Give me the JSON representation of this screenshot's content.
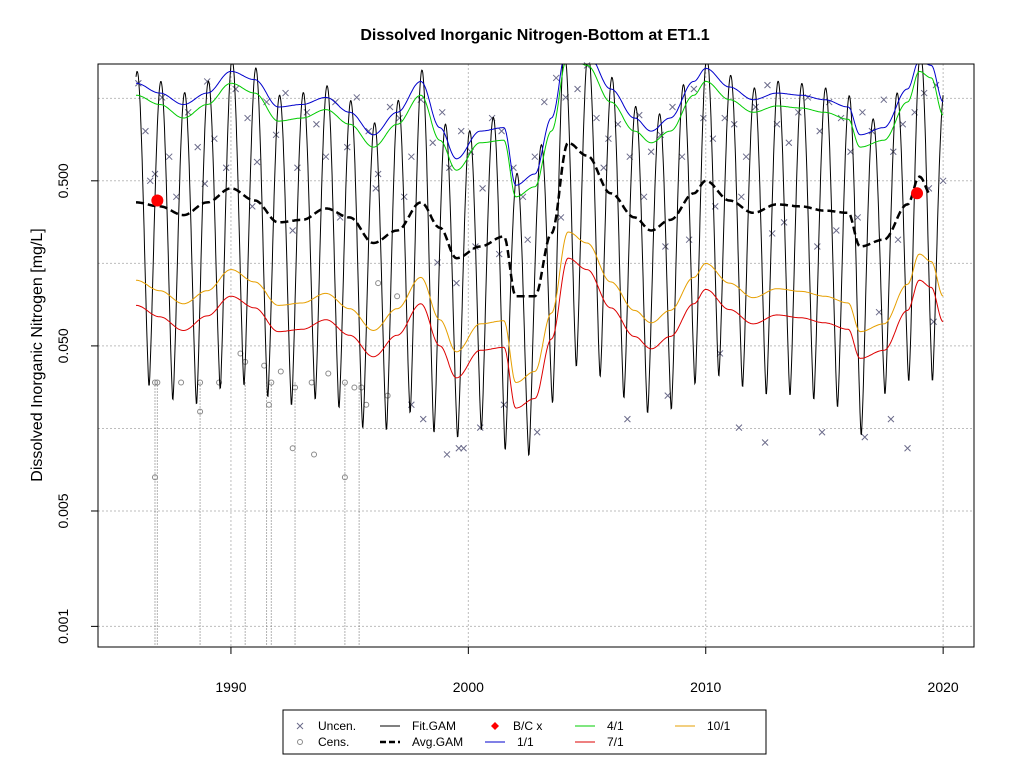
{
  "chart_data": {
    "type": "scatter",
    "title": "Dissolved Inorganic Nitrogen-Bottom at ET1.1",
    "xlabel": "",
    "ylabel": "Dissolved Inorganic Nitrogen [mg/L]",
    "y_scale": "log",
    "xlim": [
      1984.4,
      2021.3
    ],
    "ylim": [
      0.00075,
      2.55
    ],
    "x_ticks": [
      1990,
      2000,
      2010,
      2020
    ],
    "x_tick_labels": [
      "1990",
      "2000",
      "2010",
      "2020"
    ],
    "y_ticks": [
      0.001,
      0.005,
      0.05,
      0.5
    ],
    "y_tick_labels": [
      "0.001",
      "0.005",
      "0.050",
      "0.500"
    ],
    "grid": true,
    "legend_position": "bottom",
    "legend": [
      {
        "key": "uncen",
        "label": "Uncen.",
        "symbol": "x",
        "color": "#6b6b8a"
      },
      {
        "key": "cens",
        "label": "Cens.",
        "symbol": "o",
        "color": "#8a8a8a"
      },
      {
        "key": "fit",
        "label": "Fit.GAM",
        "symbol": "line",
        "color": "#000000"
      },
      {
        "key": "avg",
        "label": "Avg.GAM",
        "symbol": "dashed",
        "color": "#000000"
      },
      {
        "key": "bc",
        "label": "B/C x",
        "symbol": "diamond",
        "color": "#ff0000"
      },
      {
        "key": "s11",
        "label": "1/1",
        "symbol": "line",
        "color": "#0000cc"
      },
      {
        "key": "s41",
        "label": "4/1",
        "symbol": "line",
        "color": "#00cc00"
      },
      {
        "key": "s71",
        "label": "7/1",
        "symbol": "line",
        "color": "#dd0000"
      },
      {
        "key": "s101",
        "label": "10/1",
        "symbol": "line",
        "color": "#e69f00"
      }
    ],
    "series": [
      {
        "name": "Avg.GAM",
        "x": [
          1986.0,
          1987.0,
          1988.0,
          1989.0,
          1990.0,
          1991.0,
          1992.0,
          1993.0,
          1994.0,
          1995.0,
          1996.0,
          1997.0,
          1998.0,
          1998.8,
          1999.5,
          2000.5,
          2001.5,
          2002.0,
          2002.8,
          2003.5,
          2004.2,
          2005.0,
          2006.0,
          2007.0,
          2007.7,
          2008.5,
          2009.5,
          2010.0,
          2011.0,
          2012.0,
          2013.0,
          2014.0,
          2015.0,
          2016.0,
          2016.5,
          2017.5,
          2018.5,
          2019.0,
          2019.5
        ],
        "values": [
          0.37,
          0.35,
          0.31,
          0.37,
          0.45,
          0.38,
          0.28,
          0.29,
          0.34,
          0.3,
          0.21,
          0.25,
          0.37,
          0.26,
          0.17,
          0.2,
          0.23,
          0.1,
          0.1,
          0.24,
          0.85,
          0.71,
          0.42,
          0.3,
          0.25,
          0.29,
          0.42,
          0.5,
          0.38,
          0.32,
          0.36,
          0.35,
          0.33,
          0.32,
          0.2,
          0.22,
          0.36,
          0.53,
          0.41
        ]
      },
      {
        "name": "1/1",
        "x": [
          1986.0,
          1987.0,
          1988.0,
          1989.0,
          1990.0,
          1991.0,
          1992.0,
          1993.0,
          1994.0,
          1995.0,
          1996.0,
          1997.0,
          1998.0,
          1998.8,
          1999.5,
          2000.5,
          2001.5,
          2002.0,
          2002.8,
          2003.5,
          2004.2,
          2005.0,
          2006.0,
          2007.0,
          2007.7,
          2008.5,
          2009.5,
          2010.0,
          2011.0,
          2012.0,
          2013.0,
          2014.0,
          2015.0,
          2016.0,
          2016.5,
          2017.5,
          2018.5,
          2019.0,
          2019.5,
          2020.0
        ],
        "values": [
          1.95,
          1.7,
          1.45,
          1.7,
          2.3,
          2.05,
          1.4,
          1.45,
          1.6,
          1.3,
          0.95,
          1.3,
          2.0,
          1.05,
          0.68,
          1.0,
          1.05,
          0.47,
          0.55,
          1.2,
          3.5,
          3.0,
          1.8,
          1.2,
          1.0,
          1.2,
          2.0,
          2.4,
          1.85,
          1.55,
          1.7,
          1.65,
          1.55,
          1.4,
          0.95,
          1.05,
          1.8,
          2.7,
          2.5,
          1.5
        ]
      },
      {
        "name": "4/1",
        "x": [
          1986.0,
          1987.0,
          1988.0,
          1989.0,
          1990.0,
          1991.0,
          1992.0,
          1993.0,
          1994.0,
          1995.0,
          1996.0,
          1997.0,
          1998.0,
          1998.8,
          1999.5,
          2000.5,
          2001.5,
          2002.0,
          2002.8,
          2003.5,
          2004.2,
          2005.0,
          2006.0,
          2007.0,
          2007.7,
          2008.5,
          2009.5,
          2010.0,
          2011.0,
          2012.0,
          2013.0,
          2014.0,
          2015.0,
          2016.0,
          2016.5,
          2017.5,
          2018.5,
          2019.0,
          2019.5,
          2020.0
        ],
        "values": [
          1.65,
          1.45,
          1.2,
          1.45,
          1.95,
          1.7,
          1.15,
          1.2,
          1.35,
          1.1,
          0.8,
          1.1,
          1.65,
          0.88,
          0.58,
          0.85,
          0.88,
          0.4,
          0.46,
          1.0,
          2.95,
          2.5,
          1.5,
          1.0,
          0.85,
          1.0,
          1.65,
          2.0,
          1.55,
          1.3,
          1.42,
          1.38,
          1.3,
          1.18,
          0.8,
          0.88,
          1.5,
          2.3,
          2.1,
          1.25
        ]
      },
      {
        "name": "7/1",
        "x": [
          1986.0,
          1987.0,
          1988.0,
          1989.0,
          1990.0,
          1991.0,
          1992.0,
          1993.0,
          1994.0,
          1995.0,
          1996.0,
          1997.0,
          1998.0,
          1998.8,
          1999.5,
          2000.5,
          2001.5,
          2002.0,
          2002.8,
          2003.5,
          2004.2,
          2005.0,
          2006.0,
          2007.0,
          2007.7,
          2008.5,
          2009.5,
          2010.0,
          2011.0,
          2012.0,
          2013.0,
          2014.0,
          2015.0,
          2016.0,
          2016.5,
          2017.5,
          2018.5,
          2019.0,
          2019.5,
          2020.0
        ],
        "values": [
          0.088,
          0.075,
          0.062,
          0.076,
          0.1,
          0.085,
          0.061,
          0.063,
          0.072,
          0.058,
          0.043,
          0.058,
          0.09,
          0.05,
          0.032,
          0.047,
          0.049,
          0.021,
          0.024,
          0.055,
          0.17,
          0.145,
          0.085,
          0.057,
          0.048,
          0.057,
          0.09,
          0.11,
          0.083,
          0.068,
          0.077,
          0.074,
          0.069,
          0.063,
          0.042,
          0.047,
          0.082,
          0.125,
          0.113,
          0.07
        ]
      },
      {
        "name": "10/1",
        "x": [
          1986.0,
          1987.0,
          1988.0,
          1989.0,
          1990.0,
          1991.0,
          1992.0,
          1993.0,
          1994.0,
          1995.0,
          1996.0,
          1997.0,
          1998.0,
          1998.8,
          1999.5,
          2000.5,
          2001.5,
          2002.0,
          2002.8,
          2003.5,
          2004.2,
          2005.0,
          2006.0,
          2007.0,
          2007.7,
          2008.5,
          2009.5,
          2010.0,
          2011.0,
          2012.0,
          2013.0,
          2014.0,
          2015.0,
          2016.0,
          2016.5,
          2017.5,
          2018.5,
          2019.0,
          2019.5,
          2020.0
        ],
        "values": [
          0.125,
          0.108,
          0.09,
          0.108,
          0.145,
          0.122,
          0.088,
          0.091,
          0.104,
          0.084,
          0.062,
          0.084,
          0.13,
          0.072,
          0.046,
          0.068,
          0.071,
          0.03,
          0.035,
          0.079,
          0.245,
          0.21,
          0.122,
          0.082,
          0.069,
          0.082,
          0.13,
          0.158,
          0.12,
          0.098,
          0.111,
          0.107,
          0.1,
          0.091,
          0.061,
          0.068,
          0.118,
          0.18,
          0.162,
          0.1
        ]
      },
      {
        "name": "Fit.GAM",
        "x_start": 1986.0,
        "x_end": 2020.0,
        "period_years": 1,
        "note_fit": "seasonal oscillation between series 1/1 (peaks) and a winter low (troughs)",
        "trough_x": [
          1987.0,
          1988.0,
          1989.0,
          1990.0,
          1991.0,
          1992.0,
          1993.0,
          1994.0,
          1995.0,
          1996.0,
          1997.0,
          1998.0,
          1998.8,
          2000.0,
          2001.0,
          2002.0,
          2003.0,
          2004.0,
          2005.0,
          2006.0,
          2007.0,
          2008.0,
          2009.0,
          2010.0,
          2011.0,
          2012.0,
          2013.0,
          2014.0,
          2015.0,
          2016.0,
          2016.6,
          2017.5,
          2018.5,
          2019.5
        ],
        "trough_values": [
          0.028,
          0.02,
          0.023,
          0.03,
          0.027,
          0.022,
          0.021,
          0.025,
          0.018,
          0.014,
          0.016,
          0.022,
          0.013,
          0.014,
          0.016,
          0.009,
          0.012,
          0.035,
          0.038,
          0.028,
          0.021,
          0.018,
          0.022,
          0.035,
          0.03,
          0.026,
          0.024,
          0.025,
          0.022,
          0.02,
          0.014,
          0.025,
          0.03,
          0.03
        ]
      }
    ],
    "uncensored_points": {
      "x": [
        1986.1,
        1986.4,
        1986.8,
        1987.1,
        1987.4,
        1987.7,
        1988.2,
        1988.6,
        1989.0,
        1989.3,
        1989.8,
        1990.2,
        1990.7,
        1991.1,
        1991.5,
        1991.9,
        1992.3,
        1992.8,
        1993.2,
        1993.6,
        1994.0,
        1994.4,
        1994.9,
        1995.3,
        1995.8,
        1996.2,
        1996.7,
        1997.1,
        1997.6,
        1998.0,
        1998.5,
        1998.9,
        1999.2,
        1999.7,
        2000.1,
        2000.6,
        2001.0,
        2001.4,
        2001.9,
        2002.3,
        2002.8,
        2003.2,
        2003.7,
        2004.1,
        2004.6,
        2005.0,
        2005.4,
        2005.9,
        2006.3,
        2006.8,
        2007.2,
        2007.7,
        2008.1,
        2008.6,
        2009.0,
        2009.5,
        2009.9,
        2010.3,
        2010.8,
        2011.2,
        2011.7,
        2012.1,
        2012.6,
        2013.0,
        2013.5,
        2013.9,
        2014.3,
        2014.8,
        2015.2,
        2015.7,
        2016.1,
        2016.6,
        2017.0,
        2017.5,
        2017.9,
        2018.3,
        2018.8,
        2019.2,
        2019.7,
        1986.6,
        1988.9,
        1990.9,
        1992.6,
        1994.6,
        1996.1,
        1997.3,
        1998.7,
        1999.5,
        2000.3,
        2001.3,
        2002.5,
        2003.9,
        2005.7,
        2007.4,
        2008.3,
        2009.3,
        2010.4,
        2011.5,
        2012.8,
        2013.3,
        2014.7,
        2015.5,
        2016.4,
        2017.3,
        2018.1,
        2019.4,
        2019.6,
        2020.0,
        1999.8,
        2001.5,
        2002.9,
        2008.4,
        2006.7,
        2011.4,
        2012.5,
        2014.9,
        2016.7,
        2017.8,
        2018.5,
        1999.6,
        2000.5,
        1998.1,
        1997.6,
        2010.6,
        1999.1
      ],
      "values": [
        1.95,
        1.0,
        0.55,
        1.6,
        0.7,
        0.4,
        1.3,
        0.8,
        2.0,
        0.9,
        0.6,
        1.8,
        1.2,
        0.65,
        1.5,
        0.95,
        1.7,
        0.6,
        1.3,
        1.1,
        0.7,
        1.5,
        0.8,
        1.6,
        1.0,
        0.55,
        1.4,
        1.2,
        0.7,
        1.55,
        0.85,
        1.3,
        0.6,
        1.0,
        0.75,
        0.45,
        1.2,
        1.0,
        0.6,
        0.4,
        0.7,
        1.5,
        2.1,
        1.6,
        1.8,
        2.5,
        1.2,
        0.9,
        1.1,
        0.7,
        1.25,
        0.75,
        0.95,
        1.4,
        0.7,
        1.8,
        1.2,
        0.9,
        1.2,
        1.1,
        0.7,
        1.4,
        1.9,
        1.1,
        0.85,
        1.3,
        1.6,
        1.0,
        1.5,
        1.2,
        0.75,
        1.3,
        1.0,
        1.55,
        0.75,
        1.1,
        1.3,
        1.7,
        1.9,
        0.5,
        0.48,
        0.35,
        0.25,
        0.3,
        0.45,
        0.4,
        0.16,
        0.12,
        0.2,
        0.18,
        0.22,
        0.3,
        0.6,
        0.4,
        0.2,
        0.22,
        0.35,
        0.4,
        0.24,
        0.28,
        0.2,
        0.25,
        0.3,
        0.08,
        0.22,
        0.45,
        0.07,
        0.5,
        0.012,
        0.022,
        0.015,
        0.025,
        0.018,
        0.016,
        0.013,
        0.015,
        0.014,
        0.018,
        0.012,
        0.012,
        0.016,
        0.018,
        0.022,
        0.045,
        0.011
      ]
    },
    "censored_points": {
      "x": [
        1986.8,
        1986.9,
        1987.9,
        1988.7,
        1989.5,
        1990.4,
        1991.4,
        1991.7,
        1992.1,
        1992.7,
        1993.4,
        1994.1,
        1994.8,
        1995.2,
        1995.7,
        1996.2,
        1997.0,
        1986.8,
        1988.7,
        1990.6,
        1991.6,
        1992.6,
        1993.5,
        1994.8,
        1995.5,
        1996.6
      ],
      "values": [
        0.03,
        0.03,
        0.03,
        0.03,
        0.03,
        0.045,
        0.038,
        0.03,
        0.035,
        0.028,
        0.03,
        0.034,
        0.03,
        0.028,
        0.022,
        0.12,
        0.1,
        0.008,
        0.02,
        0.04,
        0.022,
        0.012,
        0.011,
        0.008,
        0.028,
        0.025
      ],
      "lines_to_bottom_x": [
        1986.8,
        1986.9,
        1988.7,
        1990.6,
        1991.5,
        1991.7,
        1992.7,
        1994.8,
        1995.4
      ]
    },
    "bc_points": {
      "x": [
        1986.9,
        2018.9
      ],
      "values": [
        0.38,
        0.42
      ]
    }
  }
}
